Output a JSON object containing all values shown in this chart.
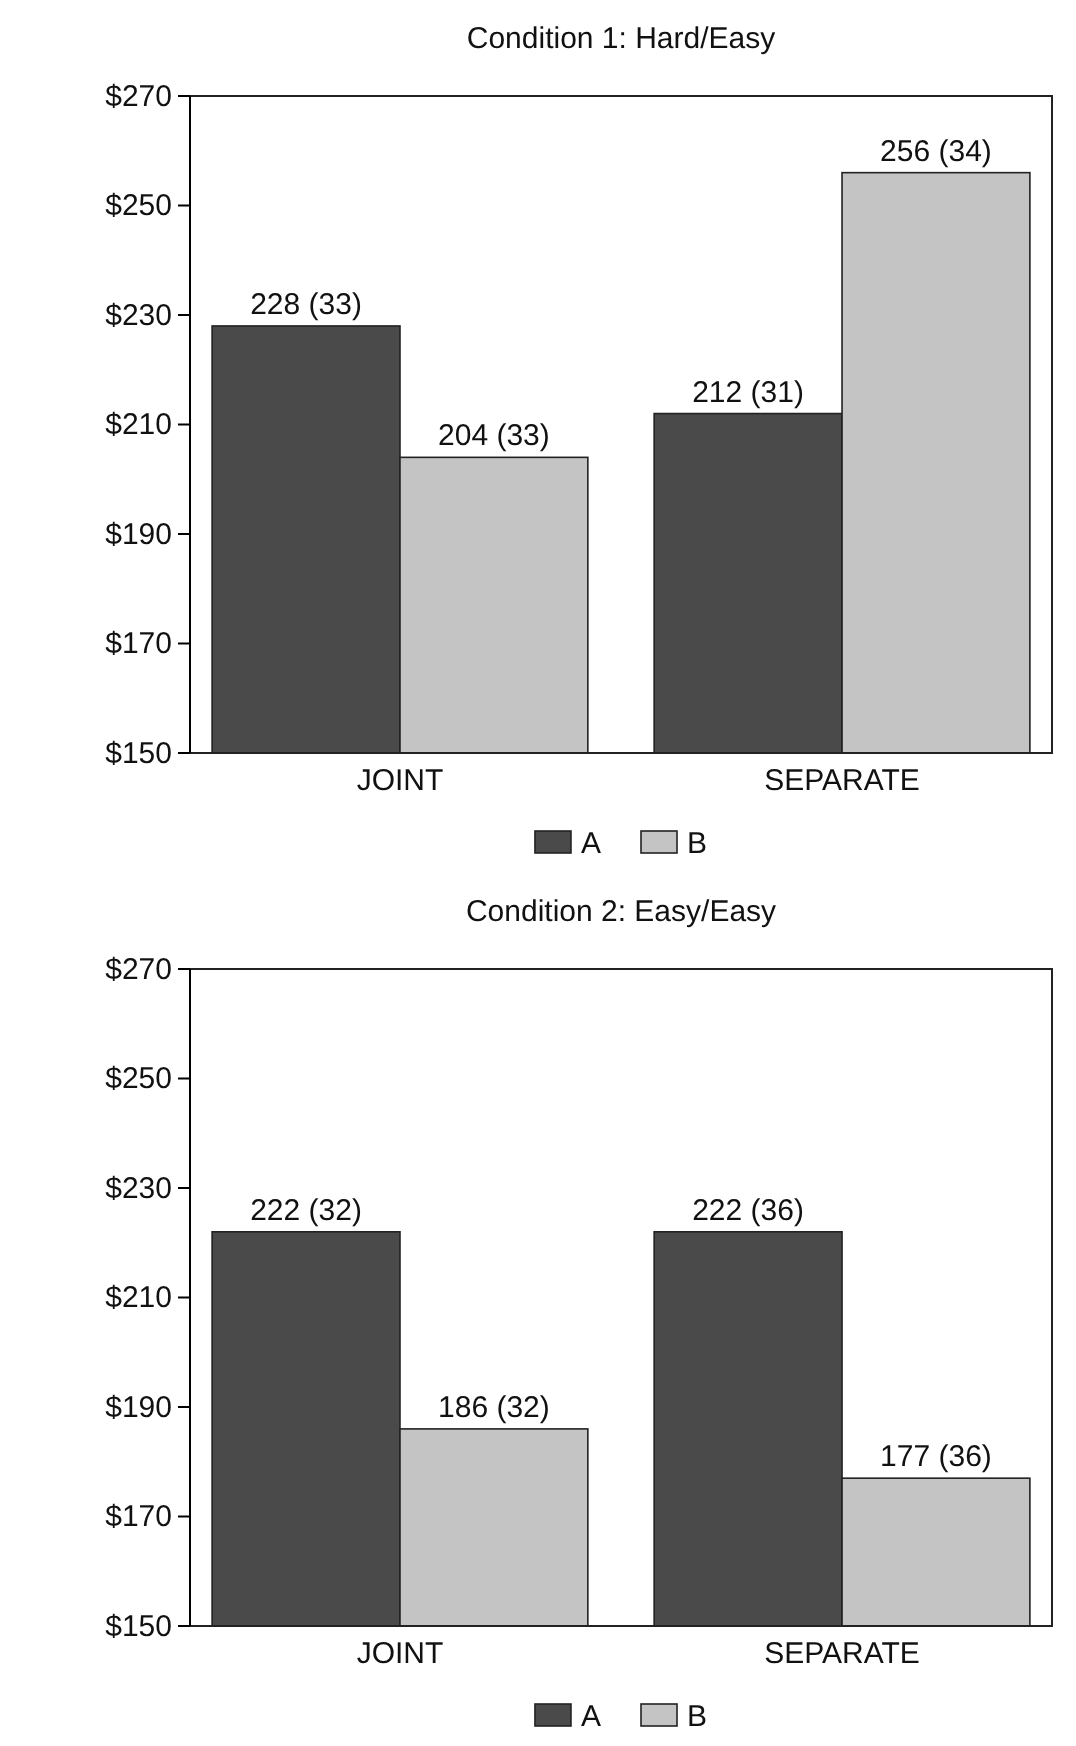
{
  "chart_data": [
    {
      "type": "bar",
      "title": "Condition 1: Hard/Easy",
      "categories": [
        "JOINT",
        "SEPARATE"
      ],
      "series": [
        {
          "name": "A",
          "color": "#4a4a4a",
          "values": [
            228,
            212
          ],
          "value_labels": [
            "228 (33)",
            "212 (31)"
          ]
        },
        {
          "name": "B",
          "color": "#c4c4c4",
          "values": [
            204,
            256
          ],
          "value_labels": [
            "204 (33)",
            "256 (34)"
          ]
        }
      ],
      "ylim": [
        150,
        270
      ],
      "yticks": [
        {
          "value": 150,
          "label": "$150"
        },
        {
          "value": 170,
          "label": "$170"
        },
        {
          "value": 190,
          "label": "$190"
        },
        {
          "value": 210,
          "label": "$210"
        },
        {
          "value": 230,
          "label": "$230"
        },
        {
          "value": 250,
          "label": "$250"
        },
        {
          "value": 270,
          "label": "$270"
        }
      ],
      "grid": false,
      "legend": "bottom"
    },
    {
      "type": "bar",
      "title": "Condition 2: Easy/Easy",
      "categories": [
        "JOINT",
        "SEPARATE"
      ],
      "series": [
        {
          "name": "A",
          "color": "#4a4a4a",
          "values": [
            222,
            222
          ],
          "value_labels": [
            "222 (32)",
            "222 (36)"
          ]
        },
        {
          "name": "B",
          "color": "#c4c4c4",
          "values": [
            186,
            177
          ],
          "value_labels": [
            "186 (32)",
            "177 (36)"
          ]
        }
      ],
      "ylim": [
        150,
        270
      ],
      "yticks": [
        {
          "value": 150,
          "label": "$150"
        },
        {
          "value": 170,
          "label": "$170"
        },
        {
          "value": 190,
          "label": "$190"
        },
        {
          "value": 210,
          "label": "$210"
        },
        {
          "value": 230,
          "label": "$230"
        },
        {
          "value": 250,
          "label": "$250"
        },
        {
          "value": 270,
          "label": "$270"
        }
      ],
      "grid": false,
      "legend": "bottom"
    }
  ]
}
